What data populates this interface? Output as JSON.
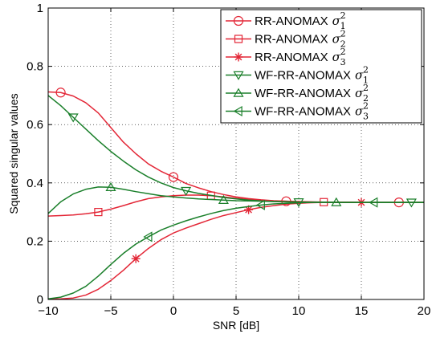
{
  "chart_data": {
    "type": "line",
    "xlabel": "SNR [dB]",
    "ylabel": "Squared singular values",
    "xlim": [
      -10,
      20
    ],
    "ylim": [
      0,
      1
    ],
    "xticks": [
      -10,
      -5,
      0,
      5,
      10,
      15,
      20
    ],
    "yticks": [
      0,
      0.2,
      0.4,
      0.6,
      0.8,
      1
    ],
    "xtick_labels": [
      "−10",
      "−5",
      "0",
      "5",
      "10",
      "15",
      "20"
    ],
    "ytick_labels": [
      "0",
      "0.2",
      "0.4",
      "0.6",
      "0.8",
      "1"
    ],
    "grid": "dotted",
    "legend_position": "top-right",
    "x": [
      -10,
      -9,
      -8,
      -7,
      -6,
      -5,
      -4,
      -3,
      -2,
      -1,
      0,
      1,
      2,
      3,
      4,
      5,
      6,
      7,
      8,
      9,
      10,
      11,
      12,
      13,
      14,
      15,
      16,
      17,
      18,
      19,
      20
    ],
    "series": [
      {
        "name": "RR-ANOMAX",
        "sym": "σ",
        "sub": "1",
        "color": "#e32636",
        "marker": "circle",
        "marker_x": [
          -9,
          0,
          9,
          18
        ],
        "values": [
          0.712,
          0.71,
          0.698,
          0.675,
          0.64,
          0.59,
          0.54,
          0.5,
          0.465,
          0.44,
          0.42,
          0.398,
          0.383,
          0.37,
          0.36,
          0.352,
          0.346,
          0.342,
          0.339,
          0.337,
          0.335,
          0.334,
          0.334,
          0.334,
          0.334,
          0.333,
          0.333,
          0.333,
          0.333,
          0.333,
          0.333
        ]
      },
      {
        "name": "RR-ANOMAX",
        "sym": "σ",
        "sub": "2",
        "color": "#e32636",
        "marker": "square",
        "marker_x": [
          -6,
          3,
          12
        ],
        "values": [
          0.286,
          0.288,
          0.29,
          0.294,
          0.3,
          0.31,
          0.322,
          0.335,
          0.346,
          0.352,
          0.356,
          0.358,
          0.358,
          0.356,
          0.352,
          0.347,
          0.343,
          0.34,
          0.338,
          0.337,
          0.336,
          0.335,
          0.334,
          0.334,
          0.334,
          0.333,
          0.333,
          0.333,
          0.333,
          0.333,
          0.333
        ]
      },
      {
        "name": "RR-ANOMAX",
        "sym": "σ",
        "sub": "3",
        "color": "#e32636",
        "marker": "star",
        "marker_x": [
          -3,
          6,
          15
        ],
        "values": [
          0.001,
          0.002,
          0.005,
          0.015,
          0.035,
          0.065,
          0.1,
          0.14,
          0.175,
          0.205,
          0.228,
          0.245,
          0.26,
          0.275,
          0.288,
          0.298,
          0.308,
          0.316,
          0.322,
          0.327,
          0.33,
          0.332,
          0.333,
          0.333,
          0.333,
          0.333,
          0.333,
          0.333,
          0.333,
          0.333,
          0.333
        ]
      },
      {
        "name": "WF-RR-ANOMAX",
        "sym": "σ",
        "sub": "1",
        "color": "#1a7f2a",
        "marker": "triangle-down",
        "marker_x": [
          -8,
          1,
          10,
          19
        ],
        "values": [
          0.7,
          0.665,
          0.625,
          0.585,
          0.545,
          0.508,
          0.475,
          0.445,
          0.42,
          0.4,
          0.384,
          0.373,
          0.364,
          0.357,
          0.35,
          0.345,
          0.341,
          0.338,
          0.336,
          0.335,
          0.334,
          0.334,
          0.334,
          0.333,
          0.333,
          0.333,
          0.333,
          0.333,
          0.333,
          0.333,
          0.333
        ]
      },
      {
        "name": "WF-RR-ANOMAX",
        "sym": "σ",
        "sub": "2",
        "color": "#1a7f2a",
        "marker": "triangle-up",
        "marker_x": [
          -5,
          4,
          13
        ],
        "values": [
          0.295,
          0.335,
          0.362,
          0.378,
          0.386,
          0.385,
          0.378,
          0.37,
          0.363,
          0.356,
          0.352,
          0.348,
          0.345,
          0.343,
          0.341,
          0.339,
          0.338,
          0.337,
          0.336,
          0.335,
          0.334,
          0.334,
          0.334,
          0.333,
          0.333,
          0.333,
          0.333,
          0.333,
          0.333,
          0.333,
          0.333
        ]
      },
      {
        "name": "WF-RR-ANOMAX",
        "sym": "σ",
        "sub": "3",
        "color": "#1a7f2a",
        "marker": "triangle-left",
        "marker_x": [
          -2,
          7,
          16
        ],
        "values": [
          0.002,
          0.008,
          0.022,
          0.045,
          0.08,
          0.12,
          0.158,
          0.19,
          0.215,
          0.238,
          0.255,
          0.27,
          0.283,
          0.295,
          0.305,
          0.313,
          0.319,
          0.324,
          0.328,
          0.33,
          0.332,
          0.333,
          0.333,
          0.333,
          0.333,
          0.333,
          0.333,
          0.333,
          0.333,
          0.333,
          0.333
        ]
      }
    ]
  }
}
